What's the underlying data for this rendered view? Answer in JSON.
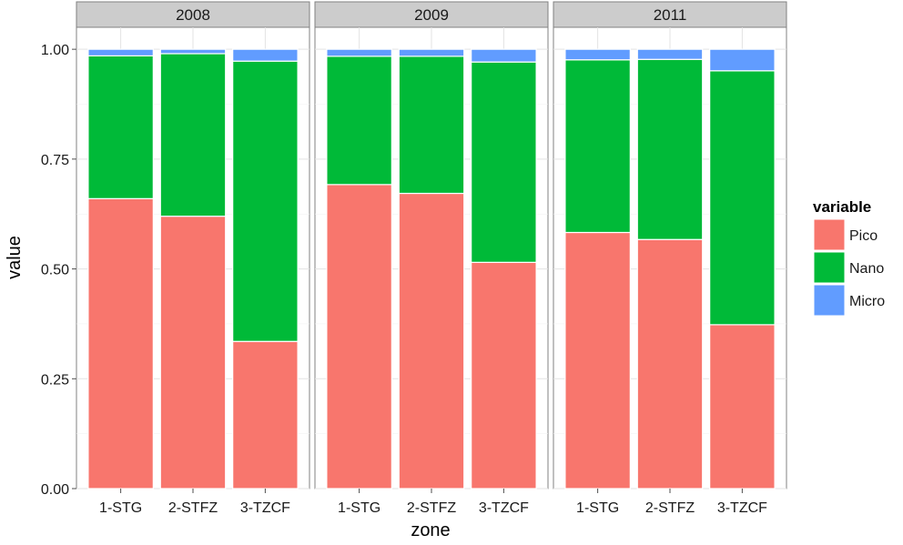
{
  "chart_data": {
    "type": "bar",
    "stacked": true,
    "facets": [
      {
        "label": "2008",
        "categories": [
          "1-STG",
          "2-STFZ",
          "3-TZCF"
        ],
        "series": [
          {
            "name": "Pico",
            "values": [
              0.66,
              0.62,
              0.335
            ]
          },
          {
            "name": "Nano",
            "values": [
              0.325,
              0.37,
              0.638
            ]
          },
          {
            "name": "Micro",
            "values": [
              0.015,
              0.01,
              0.027
            ]
          }
        ]
      },
      {
        "label": "2009",
        "categories": [
          "1-STG",
          "2-STFZ",
          "3-TZCF"
        ],
        "series": [
          {
            "name": "Pico",
            "values": [
              0.692,
              0.672,
              0.515
            ]
          },
          {
            "name": "Nano",
            "values": [
              0.292,
              0.312,
              0.456
            ]
          },
          {
            "name": "Micro",
            "values": [
              0.016,
              0.016,
              0.029
            ]
          }
        ]
      },
      {
        "label": "2011",
        "categories": [
          "1-STG",
          "2-STFZ",
          "3-TZCF"
        ],
        "series": [
          {
            "name": "Pico",
            "values": [
              0.583,
              0.567,
              0.373
            ]
          },
          {
            "name": "Nano",
            "values": [
              0.393,
              0.41,
              0.578
            ]
          },
          {
            "name": "Micro",
            "values": [
              0.024,
              0.023,
              0.049
            ]
          }
        ]
      }
    ],
    "colors": {
      "Pico": "#F8766D",
      "Nano": "#00BA38",
      "Micro": "#619CFF"
    },
    "xlabel": "zone",
    "ylabel": "value",
    "ylim": [
      0,
      1.05
    ],
    "yticks": [
      0,
      0.25,
      0.5,
      0.75,
      1.0
    ],
    "ytick_labels": [
      "0.00",
      "0.25",
      "0.50",
      "0.75",
      "1.00"
    ],
    "grid": true,
    "legend": {
      "title": "variable",
      "placement": "right",
      "entries": [
        "Pico",
        "Nano",
        "Micro"
      ]
    }
  }
}
